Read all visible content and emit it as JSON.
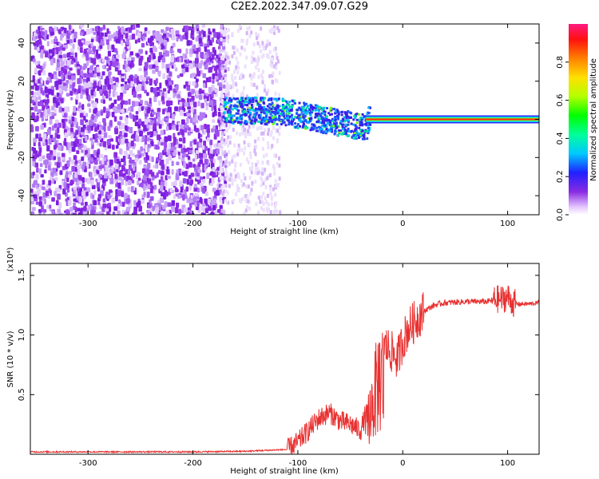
{
  "title": "C2E2.2022.347.09.07.G29",
  "colorbar": {
    "label": "Normalized spectral amplitude",
    "ticks": [
      {
        "v": 0.0,
        "label": "0.0"
      },
      {
        "v": 0.2,
        "label": "0.2"
      },
      {
        "v": 0.4,
        "label": "0.4"
      },
      {
        "v": 0.6,
        "label": "0.6"
      },
      {
        "v": 0.8,
        "label": "0.8"
      }
    ]
  },
  "chart_data": [
    {
      "type": "heatmap",
      "title": "",
      "xlabel": "Height of straight line (km)",
      "ylabel": "Frequency (Hz)",
      "xlim": [
        -355,
        130
      ],
      "ylim": [
        -50,
        50
      ],
      "xticks": [
        {
          "v": -300,
          "label": "-300"
        },
        {
          "v": -200,
          "label": "-200"
        },
        {
          "v": -100,
          "label": "-100"
        },
        {
          "v": 0,
          "label": "0"
        },
        {
          "v": 100,
          "label": "100"
        }
      ],
      "yticks": [
        {
          "v": -40,
          "label": "-40"
        },
        {
          "v": -20,
          "label": "-20"
        },
        {
          "v": 0,
          "label": "0"
        },
        {
          "v": 20,
          "label": "20"
        },
        {
          "v": 40,
          "label": "40"
        }
      ],
      "colorscale": "rainbow, 0 = white/violet to 1 = magenta/red",
      "regions": [
        {
          "x": [
            -355,
            -175
          ],
          "freq": [
            -50,
            50
          ],
          "amplitude": 0.1,
          "description_hidden": true
        },
        {
          "x": [
            -175,
            -120
          ],
          "freq": [
            -50,
            50
          ],
          "amplitude": 0.05
        },
        {
          "x": [
            -170,
            -30
          ],
          "freq_center": [
            5,
            -5
          ],
          "amplitude": 0.35
        },
        {
          "x": [
            -30,
            130
          ],
          "freq_center": [
            0,
            0
          ],
          "amplitude": 0.9
        }
      ]
    },
    {
      "type": "line",
      "title": "",
      "xlabel": "Height of straight line (km)",
      "ylabel": "SNR (10 * v/v)",
      "yscale_label": "(x10⁴)",
      "xlim": [
        -355,
        130
      ],
      "ylim": [
        0,
        1.6
      ],
      "color": "#e83030",
      "xticks": [
        {
          "v": -300,
          "label": "-300"
        },
        {
          "v": -200,
          "label": "-200"
        },
        {
          "v": -100,
          "label": "-100"
        },
        {
          "v": 0,
          "label": "0"
        },
        {
          "v": 100,
          "label": "100"
        }
      ],
      "yticks": [
        {
          "v": 0.5,
          "label": "0.5"
        },
        {
          "v": 1.0,
          "label": "1.0"
        },
        {
          "v": 1.5,
          "label": "1.5"
        }
      ],
      "series": [
        {
          "x": [
            -355,
            -300,
            -250,
            -200,
            -150,
            -110,
            -100,
            -90,
            -80,
            -70,
            -60,
            -50,
            -40,
            -35,
            -30,
            -25,
            -22,
            -20,
            -18,
            -15,
            -10,
            -5,
            0,
            5,
            10,
            15,
            20,
            30,
            40,
            60,
            80,
            90,
            95,
            100,
            105,
            110,
            120,
            130
          ],
          "values": [
            0.02,
            0.02,
            0.02,
            0.02,
            0.025,
            0.04,
            0.1,
            0.2,
            0.3,
            0.35,
            0.28,
            0.25,
            0.2,
            0.35,
            0.6,
            0.85,
            1.0,
            1.05,
            0.9,
            0.9,
            0.85,
            0.8,
            0.95,
            1.05,
            1.1,
            1.15,
            1.2,
            1.25,
            1.27,
            1.28,
            1.28,
            1.3,
            1.3,
            1.32,
            1.27,
            1.26,
            1.26,
            1.27
          ]
        }
      ]
    }
  ]
}
